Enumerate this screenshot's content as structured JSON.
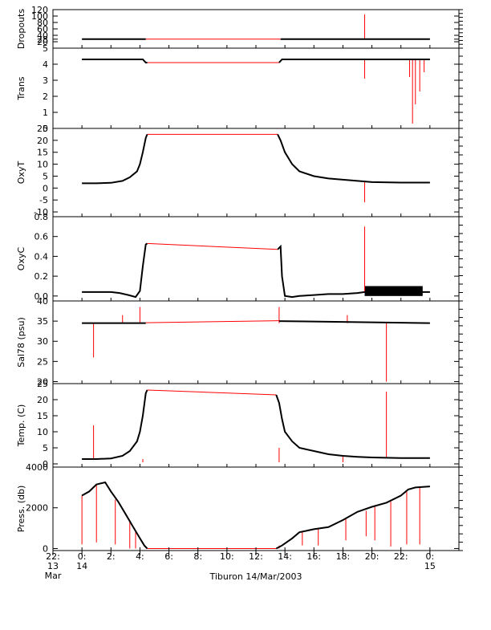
{
  "title": "Tiburon 14/Mar/2003",
  "colors": {
    "primary": "#000000",
    "spike": "#ff0000",
    "frame": "#000000"
  },
  "x_axis": {
    "unit": "hours since 00:00 14 Mar 2003",
    "range": [
      -2,
      26
    ],
    "ticks": [
      {
        "x": -2,
        "line1": "22:",
        "line2": "13",
        "line3": "Mar"
      },
      {
        "x": 0,
        "line1": "0:",
        "line2": "14",
        "line3": ""
      },
      {
        "x": 2,
        "line1": "2:",
        "line2": "",
        "line3": ""
      },
      {
        "x": 4,
        "line1": "4:",
        "line2": "",
        "line3": ""
      },
      {
        "x": 6,
        "line1": "6:",
        "line2": "",
        "line3": ""
      },
      {
        "x": 8,
        "line1": "8:",
        "line2": "",
        "line3": ""
      },
      {
        "x": 10,
        "line1": "10:",
        "line2": "",
        "line3": ""
      },
      {
        "x": 12,
        "line1": "12:",
        "line2": "",
        "line3": ""
      },
      {
        "x": 14,
        "line1": "14:",
        "line2": "",
        "line3": ""
      },
      {
        "x": 16,
        "line1": "16:",
        "line2": "",
        "line3": ""
      },
      {
        "x": 18,
        "line1": "18:",
        "line2": "",
        "line3": ""
      },
      {
        "x": 20,
        "line1": "20:",
        "line2": "",
        "line3": ""
      },
      {
        "x": 22,
        "line1": "22:",
        "line2": "",
        "line3": ""
      },
      {
        "x": 24,
        "line1": "0:",
        "line2": "15",
        "line3": ""
      }
    ]
  },
  "chart_data": [
    {
      "type": "line",
      "ylabel": "Dropouts",
      "ylim": [
        0,
        120
      ],
      "yticks": [
        "20",
        "28",
        "40",
        "60",
        "80",
        "100",
        "120"
      ],
      "yticks_values": [
        20,
        28,
        40,
        60,
        80,
        100,
        120
      ],
      "series": [
        {
          "x": [
            0,
            4.4,
            13.7,
            24
          ],
          "y": [
            28,
            28,
            28,
            28
          ]
        }
      ],
      "gap_line": {
        "x": [
          4.4,
          13.7
        ],
        "y": [
          28,
          28
        ]
      },
      "spikes": [
        {
          "x": 19.5,
          "from": 28,
          "to": 105
        }
      ]
    },
    {
      "type": "line",
      "ylabel": "Trans",
      "ylim": [
        0,
        5
      ],
      "yticks": [
        "0",
        "1",
        "2",
        "3",
        "4",
        "5"
      ],
      "yticks_values": [
        0,
        1,
        2,
        3,
        4,
        5
      ],
      "series": [
        {
          "x": [
            0,
            4.2,
            4.4,
            4.5,
            13.6,
            13.8,
            14,
            20,
            22.5,
            24
          ],
          "y": [
            4.3,
            4.3,
            4.1,
            4.1,
            4.1,
            4.3,
            4.3,
            4.3,
            4.3,
            4.3
          ]
        }
      ],
      "gap_line": {
        "x": [
          4.5,
          13.6
        ],
        "y": [
          4.1,
          4.1
        ]
      },
      "spikes": [
        {
          "x": 19.5,
          "from": 4.3,
          "to": 3.1
        },
        {
          "x": 22.8,
          "from": 4.3,
          "to": 0.3
        },
        {
          "x": 23.0,
          "from": 4.3,
          "to": 1.5
        },
        {
          "x": 23.3,
          "from": 4.3,
          "to": 2.3
        },
        {
          "x": 22.6,
          "from": 4.3,
          "to": 3.2
        },
        {
          "x": 23.6,
          "from": 4.3,
          "to": 3.5
        }
      ]
    },
    {
      "type": "line",
      "ylabel": "OxyT",
      "ylim": [
        -12,
        25
      ],
      "yticks": [
        "-10",
        "-5",
        "0",
        "5",
        "10",
        "15",
        "20",
        "25"
      ],
      "yticks_values": [
        -10,
        -5,
        0,
        5,
        10,
        15,
        20,
        25
      ],
      "series": [
        {
          "x": [
            0,
            1,
            2,
            2.8,
            3.3,
            3.8,
            4.0,
            4.2,
            4.4,
            4.5,
            13.5,
            13.7,
            14,
            14.5,
            15,
            16,
            17,
            18,
            19,
            20,
            22,
            24
          ],
          "y": [
            2,
            2,
            2.2,
            3,
            4.5,
            7,
            10,
            15,
            21,
            22.5,
            22.5,
            20,
            15,
            10,
            7,
            5,
            4,
            3.5,
            3,
            2.5,
            2.3,
            2.3
          ]
        }
      ],
      "gap_line": {
        "x": [
          4.5,
          13.5
        ],
        "y": [
          22.5,
          22.5
        ]
      },
      "spikes": [
        {
          "x": 19.5,
          "from": 2.5,
          "to": -6
        }
      ]
    },
    {
      "type": "line",
      "ylabel": "OxyC",
      "ylim": [
        -0.05,
        0.8
      ],
      "yticks": [
        "0.0",
        "0.2",
        "0.4",
        "0.6",
        "0.8"
      ],
      "yticks_values": [
        0,
        0.2,
        0.4,
        0.6,
        0.8
      ],
      "series": [
        {
          "x": [
            0,
            1,
            2,
            2.6,
            3.2,
            3.7,
            4.0,
            4.2,
            4.4,
            4.5,
            13.5,
            13.7,
            13.8,
            14.0,
            14.5,
            15,
            16,
            17,
            18,
            19,
            19.5,
            22,
            24
          ],
          "y": [
            0.04,
            0.04,
            0.04,
            0.03,
            0.01,
            -0.01,
            0.05,
            0.3,
            0.52,
            0.53,
            0.47,
            0.5,
            0.2,
            0.0,
            -0.01,
            0.0,
            0.01,
            0.02,
            0.02,
            0.03,
            0.04,
            0.04,
            0.04
          ]
        }
      ],
      "gap_line": {
        "x": [
          4.5,
          13.5
        ],
        "y": [
          0.53,
          0.47
        ]
      },
      "noise_band": {
        "x": [
          19.5,
          23.5
        ],
        "y": [
          0.0,
          0.1
        ]
      },
      "spikes": [
        {
          "x": 19.5,
          "from": 0.04,
          "to": 0.7
        }
      ]
    },
    {
      "type": "line",
      "ylabel": "Sal78 (psu)",
      "ylim": [
        19.5,
        40
      ],
      "yticks": [
        "20",
        "25",
        "30",
        "35",
        "40"
      ],
      "yticks_values": [
        20,
        25,
        30,
        35,
        40
      ],
      "series": [
        {
          "x": [
            0,
            4.4,
            13.6,
            24
          ],
          "y": [
            34.5,
            34.5,
            35,
            34.5
          ]
        }
      ],
      "gap_line": {
        "x": [
          4.4,
          13.6
        ],
        "y": [
          34.6,
          35.1
        ]
      },
      "spikes": [
        {
          "x": 0.8,
          "from": 34.5,
          "to": 26
        },
        {
          "x": 4.0,
          "from": 34.5,
          "to": 38.5
        },
        {
          "x": 13.6,
          "from": 34.5,
          "to": 38.5
        },
        {
          "x": 21,
          "from": 34.5,
          "to": 20
        },
        {
          "x": 18.3,
          "from": 34.5,
          "to": 36.5
        },
        {
          "x": 2.8,
          "from": 34.5,
          "to": 36.5
        }
      ]
    },
    {
      "type": "line",
      "ylabel": "Temp. (C)",
      "ylim": [
        -1,
        25
      ],
      "yticks": [
        "0",
        "5",
        "10",
        "15",
        "20",
        "25"
      ],
      "yticks_values": [
        0,
        5,
        10,
        15,
        20,
        25
      ],
      "series": [
        {
          "x": [
            0,
            1,
            2,
            2.8,
            3.3,
            3.8,
            4.0,
            4.2,
            4.4,
            4.5,
            13.4,
            13.6,
            13.8,
            14,
            14.5,
            15,
            16,
            17,
            18,
            19,
            20,
            22,
            24
          ],
          "y": [
            1.5,
            1.5,
            1.7,
            2.5,
            4,
            7,
            10,
            15,
            22,
            23,
            21.5,
            19,
            14,
            10,
            7,
            5,
            4,
            3,
            2.5,
            2.2,
            2,
            1.8,
            1.8
          ]
        }
      ],
      "gap_line": {
        "x": [
          4.5,
          13.4
        ],
        "y": [
          23,
          21.5
        ]
      },
      "spikes": [
        {
          "x": 0.8,
          "from": 1.5,
          "to": 12
        },
        {
          "x": 4.2,
          "from": 1.5,
          "to": 0.5
        },
        {
          "x": 13.6,
          "from": 5,
          "to": 0.5
        },
        {
          "x": 21,
          "from": 1.8,
          "to": 22.5
        },
        {
          "x": 18,
          "from": 2.5,
          "to": 0.5
        }
      ]
    },
    {
      "type": "line",
      "ylabel": "Press. (db)",
      "ylim": [
        -100,
        4000
      ],
      "yticks": [
        "0",
        "2000",
        "4000"
      ],
      "yticks_values": [
        0,
        2000,
        4000
      ],
      "series": [
        {
          "x": [
            0,
            0.5,
            1,
            1.6,
            2,
            2.5,
            3,
            3.5,
            4,
            4.3,
            4.5,
            13.4,
            13.8,
            14.5,
            15,
            16,
            17,
            18,
            19,
            20,
            21,
            22,
            22.5,
            23,
            24
          ],
          "y": [
            2600,
            2800,
            3150,
            3250,
            2800,
            2300,
            1700,
            1100,
            500,
            150,
            0,
            0,
            150,
            500,
            800,
            950,
            1050,
            1400,
            1800,
            2050,
            2250,
            2600,
            2900,
            3000,
            3050
          ]
        }
      ],
      "gap_line": {
        "x": [
          4.5,
          13.4
        ],
        "y": [
          0,
          0
        ]
      },
      "spikes": [
        {
          "x": 0,
          "from": 2600,
          "to": 200
        },
        {
          "x": 1.0,
          "from": 3150,
          "to": 300
        },
        {
          "x": 2.3,
          "from": 2400,
          "to": 200
        },
        {
          "x": 3.3,
          "from": 1300,
          "to": 0
        },
        {
          "x": 3.7,
          "from": 900,
          "to": 0
        },
        {
          "x": 13.6,
          "from": 150,
          "to": 0
        },
        {
          "x": 15.2,
          "from": 850,
          "to": 150
        },
        {
          "x": 16.3,
          "from": 950,
          "to": 150
        },
        {
          "x": 18.2,
          "from": 1450,
          "to": 400
        },
        {
          "x": 19.6,
          "from": 1850,
          "to": 600
        },
        {
          "x": 20.2,
          "from": 2050,
          "to": 400
        },
        {
          "x": 21.3,
          "from": 2300,
          "to": 100
        },
        {
          "x": 22.4,
          "from": 2800,
          "to": 200
        },
        {
          "x": 23.3,
          "from": 3000,
          "to": 200
        }
      ]
    }
  ]
}
